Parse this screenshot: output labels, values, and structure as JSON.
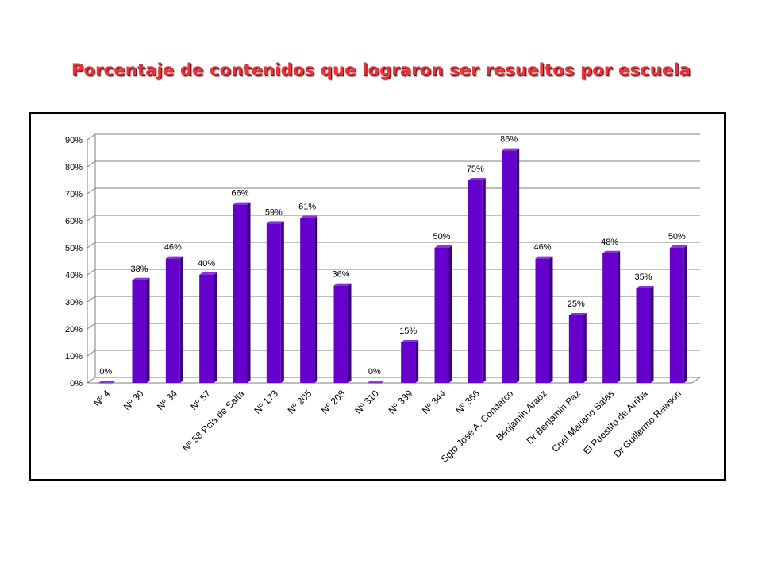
{
  "title": "Porcentaje de contenidos que lograron ser resueltos por escuela",
  "colors": {
    "bar_front": "#6600cc",
    "bar_side": "#3d0080",
    "bar_top": "#8a33e0",
    "title": "#e8323c",
    "grid": "#7f7f7f"
  },
  "chart_data": {
    "type": "bar",
    "categories": [
      "Nº 4",
      "Nº 30",
      "Nº 34",
      "Nº 57",
      "Nº 58 Pcia de Salta",
      "Nº 173",
      "Nº 205",
      "Nº 208",
      "Nº 310",
      "Nº 339",
      "Nº 344",
      "Nº 366",
      "Sgto Jose A. Condarco",
      "Benjamin Araoz",
      "Dr Benjamin Paz",
      "Cnel Mariano Salas",
      "El Puestito de Arriba",
      "Dr Guillermo Rawson"
    ],
    "values": [
      0,
      38,
      46,
      40,
      66,
      59,
      61,
      36,
      0,
      15,
      50,
      75,
      86,
      46,
      25,
      48,
      35,
      50
    ],
    "data_labels": [
      "0%",
      "38%",
      "46%",
      "40%",
      "66%",
      "59%",
      "61%",
      "36%",
      "0%",
      "15%",
      "50%",
      "75%",
      "86%",
      "46%",
      "25%",
      "48%",
      "35%",
      "50%"
    ],
    "y_ticks": [
      "0%",
      "10%",
      "20%",
      "30%",
      "40%",
      "50%",
      "60%",
      "70%",
      "80%",
      "90%"
    ],
    "ylim": [
      0,
      90
    ],
    "grid": true,
    "legend": false
  }
}
